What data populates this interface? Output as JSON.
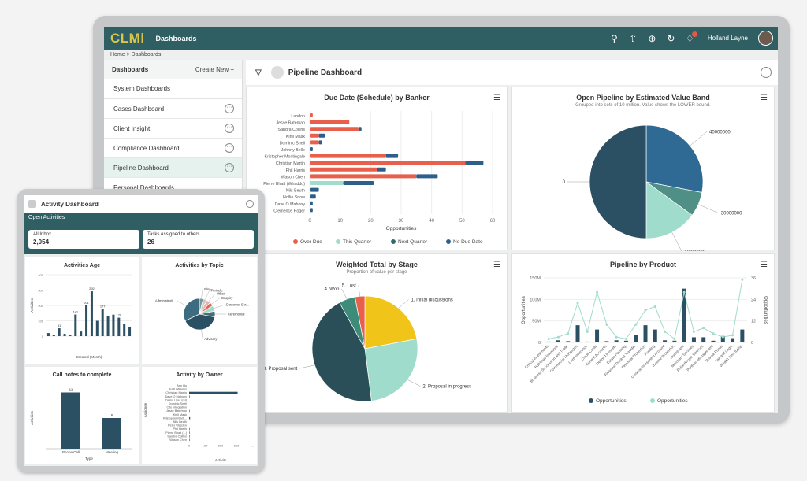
{
  "app": {
    "logo": "CLMi",
    "title": "Dashboards",
    "user": "Holland Layne",
    "icons": [
      "search-icon",
      "upload-icon",
      "plus-circle-icon",
      "history-icon",
      "bell-icon"
    ]
  },
  "breadcrumb": "Home  >  Dashboards",
  "sidebar": {
    "header": "Dashboards",
    "create": "Create New +",
    "group1": "System Dashboards",
    "items": [
      "Cases Dashboard",
      "Client Insight",
      "Compliance Dashboard",
      "Pipeline Dashboard"
    ],
    "group2": "Personal Dashboards"
  },
  "main": {
    "title": "Pipeline Dashboard"
  },
  "charts": {
    "due": {
      "title": "Due Date (Schedule) by Banker",
      "xlabel": "Opportunities",
      "ticks": [
        "0",
        "10",
        "20",
        "30",
        "40",
        "50",
        "60"
      ],
      "bankers": [
        "Landon",
        "Jesse Bateman",
        "Sandra Collins",
        "Kirill Mask",
        "Dominic Snell",
        "Johnny Belle",
        "Kristopher Montingale",
        "Christian Martin",
        "Phil Harris",
        "Wason Chen",
        "Pierre Bhatt (Whaddo)",
        "Nils Beuth",
        "Hollie Snow",
        "Dave O Mahony",
        "Clemence Roger"
      ],
      "overdue": [
        1,
        13,
        16,
        3,
        3,
        0,
        25,
        51,
        22,
        35,
        0,
        0,
        0,
        0,
        0
      ],
      "thisq": [
        0,
        0,
        0,
        0,
        0,
        0,
        0,
        0,
        0,
        0,
        11,
        0,
        0,
        0,
        0
      ],
      "nextq": [
        0,
        0,
        0,
        0,
        0,
        0,
        0,
        0,
        0,
        0,
        0,
        0,
        0,
        0,
        0
      ],
      "nodue": [
        0,
        0,
        1,
        2,
        1,
        1,
        4,
        6,
        3,
        7,
        10,
        3,
        2,
        1,
        1
      ],
      "legend": [
        "Over Due",
        "This Quarter",
        "Next Quarter",
        "No Due Date"
      ],
      "colors": [
        "#e8604c",
        "#9fdccc",
        "#2f6b6c",
        "#2e5f8a"
      ]
    },
    "band": {
      "title": "Open Pipeline by Estimated Value Band",
      "subtitle": "Grouped into sets of 10 million. Value shows the LOWER bound.",
      "labels": [
        "40000000",
        "30000000",
        "10000000",
        "0"
      ],
      "values": [
        28,
        7,
        15,
        50
      ],
      "colors": [
        "#2e6a94",
        "#4f8f86",
        "#9fdccc",
        "#2b4f63"
      ]
    },
    "stage": {
      "title": "Weighted Total by Stage",
      "subtitle": "Proportion of value per stage",
      "labels": [
        "1. Initial discussions",
        "2. Proposal in progress",
        "3. Proposal sent",
        "4. Won",
        "5. Lost"
      ],
      "values": [
        22,
        26,
        44,
        5,
        3
      ],
      "colors": [
        "#f0c419",
        "#9fdccc",
        "#2a4f58",
        "#3d8c7a",
        "#e8604c"
      ]
    },
    "product": {
      "title": "Pipeline by Product",
      "ylabel": "Opportunities",
      "y2label": "Opportunities",
      "yticks": [
        "0",
        "50M",
        "100M",
        "150M"
      ],
      "y2ticks": [
        "0",
        "12",
        "24",
        "36"
      ],
      "products": [
        "Critical Investments",
        "Buildings Insurance",
        "Business Succession and Trade",
        "Commercial Mortgages",
        "Core Insurance",
        "Credit Cards",
        "Current Accounts",
        "Defined Benefits",
        "Estate Planning",
        "Financial Product Transfer",
        "Financial Protection",
        "Funding",
        "General Investment Account",
        "Income Protection",
        "Investment",
        "Merchant Services",
        "Philanthropic Services",
        "Portfolio Management",
        "Private Funds",
        "Tax and Legal",
        "Wealth Structuring"
      ],
      "bars": [
        2,
        5,
        3,
        40,
        2,
        30,
        3,
        5,
        4,
        18,
        40,
        30,
        5,
        4,
        125,
        12,
        12,
        4,
        15,
        10,
        30
      ],
      "line": [
        2,
        3,
        5,
        22,
        6,
        28,
        10,
        3,
        2,
        10,
        18,
        20,
        6,
        2,
        28,
        6,
        8,
        5,
        3,
        4,
        35
      ],
      "legend": [
        "Opportunities",
        "Opportunities"
      ],
      "colors": [
        "#2b4f63",
        "#9fdccc"
      ]
    }
  },
  "tablet": {
    "title": "Activity Dashboard",
    "bar": "Open Activities",
    "tiles": [
      {
        "label": "All Inbox",
        "value": "2,054"
      },
      {
        "label": "Tasks Assigned to others",
        "value": "26"
      }
    ],
    "age": {
      "title": "Activities Age",
      "ylabel": "Activities",
      "xlabel": "Created (Month)",
      "yticks": [
        "0",
        "100",
        "200",
        "300",
        "400"
      ],
      "labels": [
        "51",
        "141",
        "201",
        "292",
        "177",
        "120"
      ],
      "values": [
        20,
        10,
        51,
        15,
        5,
        141,
        30,
        201,
        292,
        100,
        177,
        130,
        140,
        120,
        80,
        60
      ]
    },
    "topic": {
      "title": "Activities by Topic",
      "labels": [
        "Elso",
        "Periodic",
        "Other",
        "Enquiry",
        "Customer Ser...",
        "Ceremonial",
        "Advisory",
        "Administrati..."
      ],
      "values": [
        4,
        4,
        4,
        4,
        6,
        6,
        40,
        32
      ],
      "colors": [
        "#7b9c92",
        "#c9c9c9",
        "#e8b0b0",
        "#e8604c",
        "#9fdccc",
        "#4a6d75",
        "#2b4f63",
        "#3d6b80"
      ]
    },
    "notes": {
      "title": "Call notes to complete",
      "ylabel": "Activities",
      "xlabel": "Type",
      "cats": [
        "Phone Call",
        "Meeting"
      ],
      "values": [
        11,
        6
      ],
      "labels": [
        "11",
        "6"
      ]
    },
    "owner": {
      "title": "Activity by Owner",
      "ylabel": "Assignee",
      "xlabel": "Activity",
      "names": [
        "Arin Ho",
        "Brett Williams",
        "Christian Martin",
        "Dave O Mahony",
        "Demo User (rel)",
        "Dominic Snell",
        "City Integration",
        "Jesse Bateman",
        "Kirill Mask",
        "Kristopher Marti...",
        "Nils Beuth",
        "Peter Wasden",
        "Phil Harris",
        "Pierre Bhatt (...)",
        "Sandra Collins",
        "Wason Chen"
      ],
      "values": [
        0,
        0,
        100,
        1,
        0,
        0,
        0,
        1,
        0,
        2,
        0,
        0,
        1,
        1,
        1,
        1
      ],
      "ticks": [
        "0",
        "100",
        "200",
        "300",
        "..."
      ]
    }
  }
}
